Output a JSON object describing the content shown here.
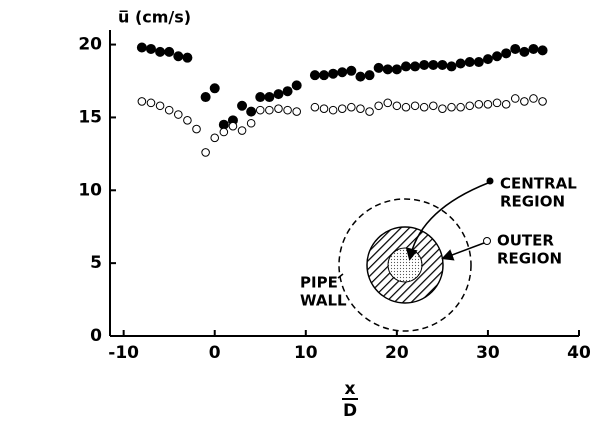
{
  "chart_data": {
    "type": "scatter",
    "y_label": "u̅ (cm/s)",
    "x_label_top": "x",
    "x_label_bottom": "D",
    "xlim": [
      -11.5,
      40
    ],
    "xticks": [
      -10,
      0,
      10,
      20,
      30,
      40
    ],
    "ylim": [
      0,
      21
    ],
    "yticks": [
      0,
      5,
      10,
      15,
      20
    ],
    "series": [
      {
        "marker": "filled",
        "color": "#000000",
        "x": [
          -8,
          -7,
          -6,
          -5,
          -4,
          -3,
          -1,
          0,
          1,
          2,
          3,
          4,
          5,
          6,
          7,
          8,
          9,
          11,
          12,
          13,
          14,
          15,
          16,
          17,
          18,
          19,
          20,
          21,
          22,
          23,
          24,
          25,
          26,
          27,
          28,
          29,
          30,
          31,
          32,
          33,
          34,
          35,
          36
        ],
        "values": [
          19.8,
          19.7,
          19.5,
          19.5,
          19.2,
          19.1,
          16.4,
          17.0,
          14.5,
          14.8,
          15.8,
          15.4,
          16.4,
          16.4,
          16.6,
          16.8,
          17.2,
          17.9,
          17.9,
          18.0,
          18.1,
          18.2,
          17.8,
          17.9,
          18.4,
          18.3,
          18.3,
          18.5,
          18.5,
          18.6,
          18.6,
          18.6,
          18.5,
          18.7,
          18.8,
          18.8,
          19.0,
          19.2,
          19.4,
          19.7,
          19.5,
          19.7,
          19.6
        ]
      },
      {
        "marker": "open",
        "color": "#000000",
        "x": [
          -8,
          -7,
          -6,
          -5,
          -4,
          -3,
          -2,
          -1,
          0,
          1,
          2,
          3,
          4,
          5,
          6,
          7,
          8,
          9,
          11,
          12,
          13,
          14,
          15,
          16,
          17,
          18,
          19,
          20,
          21,
          22,
          23,
          24,
          25,
          26,
          27,
          28,
          29,
          30,
          31,
          32,
          33,
          34,
          35,
          36
        ],
        "values": [
          16.1,
          16.0,
          15.8,
          15.5,
          15.2,
          14.8,
          14.2,
          12.6,
          13.6,
          14.0,
          14.4,
          14.1,
          14.6,
          15.5,
          15.5,
          15.6,
          15.5,
          15.4,
          15.7,
          15.6,
          15.5,
          15.6,
          15.7,
          15.6,
          15.4,
          15.8,
          16.0,
          15.8,
          15.7,
          15.8,
          15.7,
          15.8,
          15.6,
          15.7,
          15.7,
          15.8,
          15.9,
          15.9,
          16.0,
          15.9,
          16.3,
          16.1,
          16.3,
          16.1
        ]
      }
    ],
    "annotations": [
      [
        "CENTRAL",
        "REGION"
      ],
      [
        "OUTER",
        "REGION"
      ],
      [
        "PIPE",
        "WALL"
      ]
    ]
  }
}
